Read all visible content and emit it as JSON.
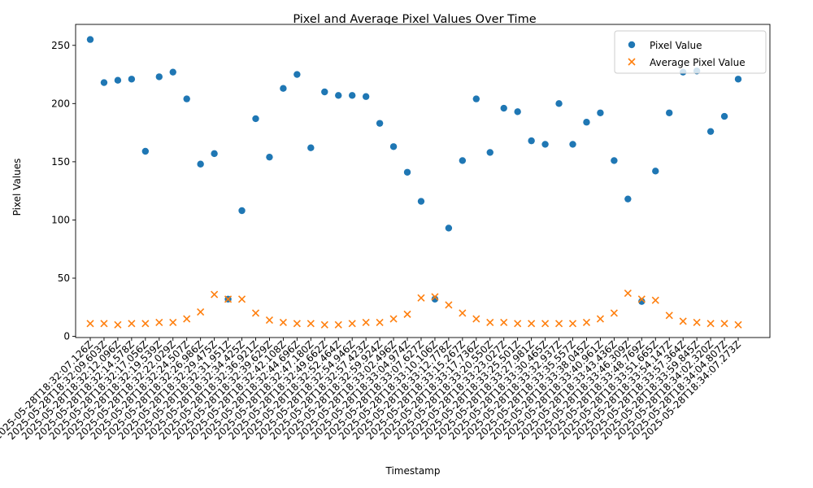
{
  "chart_data": {
    "type": "scatter",
    "title": "Pixel and Average Pixel Values Over Time",
    "xlabel": "Timestamp",
    "ylabel": "Pixel Values",
    "ylim": [
      -1,
      268
    ],
    "yticks": [
      0,
      50,
      100,
      150,
      200,
      250
    ],
    "grid": false,
    "legend_position": "top-right",
    "x": [
      "2025-05-28T18:32:07.126Z",
      "2025-05-28T18:32:09.603Z",
      "2025-05-28T18:32:12.096Z",
      "2025-05-28T18:32:14.578Z",
      "2025-05-28T18:32:17.056Z",
      "2025-05-28T18:32:19.539Z",
      "2025-05-28T18:32:22.029Z",
      "2025-05-28T18:32:24.507Z",
      "2025-05-28T18:32:26.986Z",
      "2025-05-28T18:32:29.475Z",
      "2025-05-28T18:32:31.951Z",
      "2025-05-28T18:32:34.425Z",
      "2025-05-28T18:32:36.921Z",
      "2025-05-28T18:32:39.629Z",
      "2025-05-28T18:32:42.108Z",
      "2025-05-28T18:32:44.696Z",
      "2025-05-28T18:32:47.180Z",
      "2025-05-28T18:32:49.662Z",
      "2025-05-28T18:32:52.464Z",
      "2025-05-28T18:32:54.946Z",
      "2025-05-28T18:32:57.423Z",
      "2025-05-28T18:32:59.924Z",
      "2025-05-28T18:33:02.496Z",
      "2025-05-28T18:33:04.974Z",
      "2025-05-28T18:33:07.627Z",
      "2025-05-28T18:33:10.106Z",
      "2025-05-28T18:33:12.778Z",
      "2025-05-28T18:33:15.267Z",
      "2025-05-28T18:33:17.736Z",
      "2025-05-28T18:33:20.550Z",
      "2025-05-28T18:33:23.027Z",
      "2025-05-28T18:33:25.501Z",
      "2025-05-28T18:33:27.981Z",
      "2025-05-28T18:33:30.465Z",
      "2025-05-28T18:33:32.937Z",
      "2025-05-28T18:33:35.557Z",
      "2025-05-28T18:33:38.045Z",
      "2025-05-28T18:33:40.961Z",
      "2025-05-28T18:33:43.436Z",
      "2025-05-28T18:33:46.309Z",
      "2025-05-28T18:33:48.769Z",
      "2025-05-28T18:33:51.665Z",
      "2025-05-28T18:33:54.147Z",
      "2025-05-28T18:33:57.364Z",
      "2025-05-28T18:33:59.845Z",
      "2025-05-28T18:34:02.320Z",
      "2025-05-28T18:34:04.807Z",
      "2025-05-28T18:34:07.273Z"
    ],
    "series": [
      {
        "name": "Pixel Value",
        "marker": "circle",
        "color": "#1f77b4",
        "values": [
          255,
          218,
          220,
          221,
          159,
          223,
          227,
          204,
          148,
          157,
          32,
          108,
          187,
          154,
          213,
          225,
          162,
          210,
          207,
          207,
          206,
          183,
          163,
          141,
          116,
          32,
          93,
          151,
          204,
          158,
          196,
          193,
          168,
          165,
          200,
          165,
          184,
          192,
          151,
          118,
          30,
          142,
          192,
          227,
          228,
          176,
          189,
          221
        ]
      },
      {
        "name": "Average Pixel Value",
        "marker": "x",
        "color": "#ff7f0e",
        "values": [
          11,
          11,
          10,
          11,
          11,
          12,
          12,
          15,
          21,
          36,
          32,
          32,
          20,
          14,
          12,
          11,
          11,
          10,
          10,
          11,
          12,
          12,
          15,
          19,
          33,
          34,
          27,
          20,
          15,
          12,
          12,
          11,
          11,
          11,
          11,
          11,
          12,
          15,
          20,
          37,
          32,
          31,
          18,
          13,
          12,
          11,
          11,
          10
        ]
      }
    ]
  }
}
